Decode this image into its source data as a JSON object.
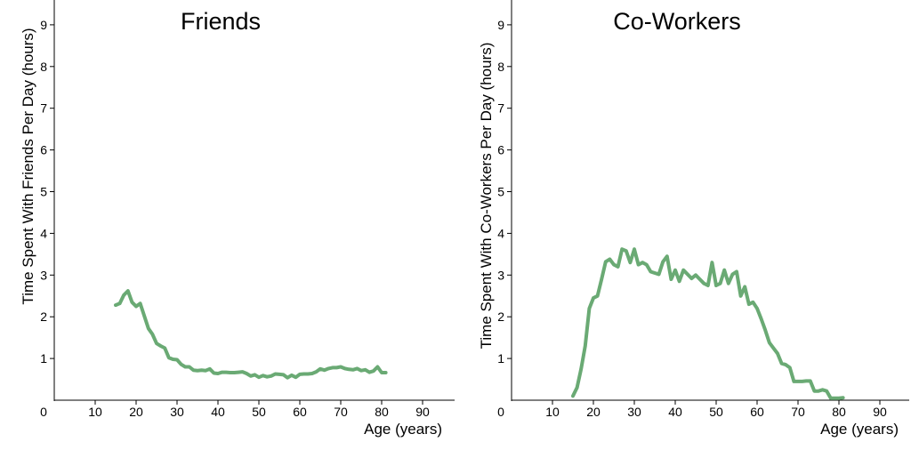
{
  "chart_data": [
    {
      "type": "line",
      "title": "Friends",
      "xlabel": "Age (years)",
      "ylabel": "Time Spent With Friends Per Day (hours)",
      "xlim": [
        0,
        95
      ],
      "ylim": [
        0,
        9.5
      ],
      "xticks": [
        0,
        10,
        20,
        30,
        40,
        50,
        60,
        70,
        80,
        90
      ],
      "yticks": [
        1,
        2,
        3,
        4,
        5,
        6,
        7,
        8,
        9
      ],
      "grid": false,
      "color": "#6aaa74",
      "series": [
        {
          "x": [
            15,
            16,
            17,
            18,
            19,
            20,
            21,
            22,
            23,
            24,
            25,
            26,
            27,
            28,
            29,
            30,
            31,
            32,
            33,
            34,
            35,
            36,
            37,
            38,
            39,
            40,
            41,
            42,
            43,
            44,
            45,
            46,
            47,
            48,
            49,
            50,
            51,
            52,
            53,
            54,
            55,
            56,
            57,
            58,
            59,
            60,
            61,
            62,
            63,
            64,
            65,
            66,
            67,
            68,
            69,
            70,
            71,
            72,
            73,
            74,
            75,
            76,
            77,
            78,
            79,
            80,
            81
          ],
          "y": [
            2.28,
            2.32,
            2.52,
            2.62,
            2.35,
            2.25,
            2.32,
            2.02,
            1.72,
            1.58,
            1.36,
            1.3,
            1.25,
            1.02,
            0.98,
            0.97,
            0.86,
            0.8,
            0.8,
            0.72,
            0.71,
            0.72,
            0.71,
            0.75,
            0.65,
            0.64,
            0.67,
            0.67,
            0.66,
            0.66,
            0.67,
            0.68,
            0.64,
            0.58,
            0.61,
            0.55,
            0.59,
            0.56,
            0.58,
            0.63,
            0.62,
            0.61,
            0.54,
            0.6,
            0.55,
            0.62,
            0.63,
            0.63,
            0.64,
            0.68,
            0.75,
            0.72,
            0.76,
            0.78,
            0.78,
            0.8,
            0.76,
            0.74,
            0.73,
            0.76,
            0.71,
            0.73,
            0.67,
            0.7,
            0.8,
            0.66,
            0.66
          ]
        }
      ]
    },
    {
      "type": "line",
      "title": "Co-Workers",
      "xlabel": "Age (years)",
      "ylabel": "Time Spent With Co-Workers Per Day (hours)",
      "xlim": [
        0,
        95
      ],
      "ylim": [
        0,
        9.5
      ],
      "xticks": [
        0,
        10,
        20,
        30,
        40,
        50,
        60,
        70,
        80,
        90
      ],
      "yticks": [
        1,
        2,
        3,
        4,
        5,
        6,
        7,
        8,
        9
      ],
      "grid": false,
      "color": "#6aaa74",
      "series": [
        {
          "x": [
            15,
            16,
            17,
            18,
            19,
            20,
            21,
            22,
            23,
            24,
            25,
            26,
            27,
            28,
            29,
            30,
            31,
            32,
            33,
            34,
            35,
            36,
            37,
            38,
            39,
            40,
            41,
            42,
            43,
            44,
            45,
            46,
            47,
            48,
            49,
            50,
            51,
            52,
            53,
            54,
            55,
            56,
            57,
            58,
            59,
            60,
            61,
            62,
            63,
            64,
            65,
            66,
            67,
            68,
            69,
            70,
            71,
            72,
            73,
            74,
            75,
            76,
            77,
            78,
            79,
            80,
            81
          ],
          "y": [
            0.1,
            0.3,
            0.75,
            1.3,
            2.2,
            2.45,
            2.5,
            2.9,
            3.32,
            3.38,
            3.25,
            3.2,
            3.62,
            3.58,
            3.3,
            3.62,
            3.25,
            3.3,
            3.25,
            3.08,
            3.05,
            3.02,
            3.32,
            3.45,
            2.9,
            3.12,
            2.85,
            3.12,
            3.02,
            2.92,
            3.0,
            2.9,
            2.8,
            2.75,
            3.3,
            2.75,
            2.8,
            3.12,
            2.8,
            3.02,
            3.08,
            2.5,
            2.72,
            2.3,
            2.35,
            2.2,
            1.95,
            1.68,
            1.38,
            1.25,
            1.12,
            0.88,
            0.85,
            0.78,
            0.45,
            0.45,
            0.45,
            0.46,
            0.46,
            0.22,
            0.22,
            0.25,
            0.22,
            0.05,
            0.05,
            0.05,
            0.06
          ]
        }
      ]
    }
  ]
}
